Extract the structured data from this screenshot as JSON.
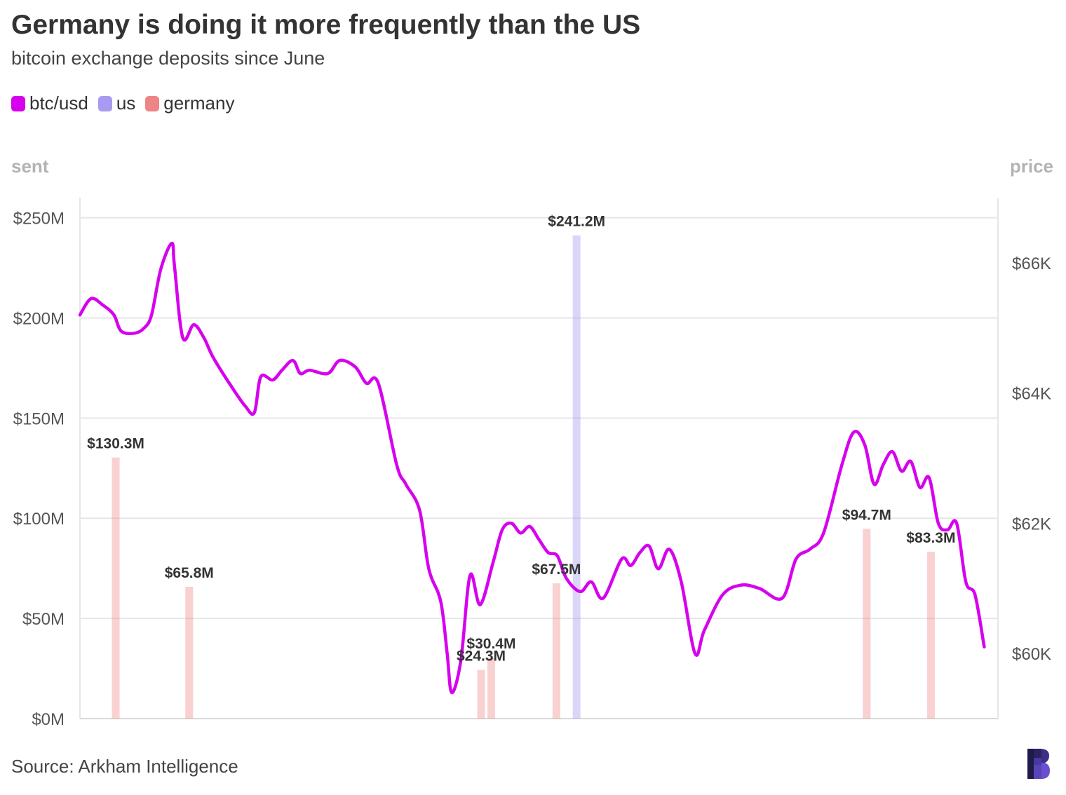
{
  "header": {
    "title": "Germany is doing it more frequently than the US",
    "subtitle": "bitcoin exchange deposits since June"
  },
  "legend": [
    {
      "label": "btc/usd",
      "color": "#d602ee"
    },
    {
      "label": "us",
      "color": "#a89af0"
    },
    {
      "label": "germany",
      "color": "#ee8585"
    }
  ],
  "axes": {
    "left_title": "sent",
    "right_title": "price"
  },
  "footer": {
    "source": "Source: Arkham Intelligence"
  },
  "logo_icon": "brand-b-logo",
  "chart_data": {
    "type": "bar",
    "subtype": "bar-line-combo",
    "left_axis": {
      "title": "sent",
      "range": [
        0,
        260
      ],
      "unit": "$M",
      "ticks": [
        "$0M",
        "$50M",
        "$100M",
        "$150M",
        "$200M",
        "$250M"
      ]
    },
    "right_axis": {
      "title": "price",
      "range": [
        59000,
        67000
      ],
      "ticks": [
        "$60K",
        "$62K",
        "$64K",
        "$66K"
      ]
    },
    "grid": true,
    "legend_position": "top-left",
    "bar_series": [
      {
        "name": "germany",
        "color": "#ee8585",
        "bars": [
          {
            "x": 0.039,
            "value": 130.3,
            "label": "$130.3M"
          },
          {
            "x": 0.119,
            "value": 65.8,
            "label": "$65.8M"
          },
          {
            "x": 0.437,
            "value": 24.3,
            "label": "$24.3M"
          },
          {
            "x": 0.448,
            "value": 30.4,
            "label": "$30.4M"
          },
          {
            "x": 0.519,
            "value": 67.5,
            "label": "$67.5M"
          },
          {
            "x": 0.857,
            "value": 94.7,
            "label": "$94.7M"
          },
          {
            "x": 0.927,
            "value": 83.3,
            "label": "$83.3M"
          }
        ]
      },
      {
        "name": "us",
        "color": "#a89af0",
        "bars": [
          {
            "x": 0.541,
            "value": 241.2,
            "label": "$241.2M"
          }
        ]
      }
    ],
    "line_series": {
      "name": "btc/usd",
      "color": "#d602ee",
      "points": [
        [
          0.0,
          65.2
        ],
        [
          0.012,
          65.45
        ],
        [
          0.025,
          65.35
        ],
        [
          0.037,
          65.2
        ],
        [
          0.045,
          64.95
        ],
        [
          0.06,
          64.92
        ],
        [
          0.07,
          65.0
        ],
        [
          0.078,
          65.2
        ],
        [
          0.088,
          65.9
        ],
        [
          0.1,
          66.3
        ],
        [
          0.103,
          65.95
        ],
        [
          0.112,
          64.85
        ],
        [
          0.124,
          65.05
        ],
        [
          0.135,
          64.85
        ],
        [
          0.145,
          64.55
        ],
        [
          0.165,
          64.1
        ],
        [
          0.18,
          63.8
        ],
        [
          0.19,
          63.7
        ],
        [
          0.197,
          64.25
        ],
        [
          0.21,
          64.2
        ],
        [
          0.22,
          64.35
        ],
        [
          0.232,
          64.5
        ],
        [
          0.24,
          64.3
        ],
        [
          0.25,
          64.35
        ],
        [
          0.27,
          64.3
        ],
        [
          0.283,
          64.5
        ],
        [
          0.3,
          64.4
        ],
        [
          0.312,
          64.15
        ],
        [
          0.325,
          64.15
        ],
        [
          0.345,
          62.9
        ],
        [
          0.355,
          62.6
        ],
        [
          0.37,
          62.2
        ],
        [
          0.38,
          61.3
        ],
        [
          0.393,
          60.8
        ],
        [
          0.4,
          60.0
        ],
        [
          0.405,
          59.4
        ],
        [
          0.415,
          59.9
        ],
        [
          0.425,
          61.2
        ],
        [
          0.436,
          60.75
        ],
        [
          0.45,
          61.4
        ],
        [
          0.46,
          61.9
        ],
        [
          0.47,
          62.0
        ],
        [
          0.48,
          61.85
        ],
        [
          0.49,
          61.95
        ],
        [
          0.5,
          61.75
        ],
        [
          0.51,
          61.55
        ],
        [
          0.52,
          61.5
        ],
        [
          0.53,
          61.15
        ],
        [
          0.545,
          60.95
        ],
        [
          0.557,
          61.1
        ],
        [
          0.57,
          60.85
        ],
        [
          0.59,
          61.45
        ],
        [
          0.6,
          61.35
        ],
        [
          0.61,
          61.55
        ],
        [
          0.62,
          61.65
        ],
        [
          0.63,
          61.3
        ],
        [
          0.642,
          61.6
        ],
        [
          0.655,
          61.1
        ],
        [
          0.67,
          60.0
        ],
        [
          0.68,
          60.35
        ],
        [
          0.7,
          60.9
        ],
        [
          0.72,
          61.05
        ],
        [
          0.74,
          61.0
        ],
        [
          0.765,
          60.85
        ],
        [
          0.78,
          61.45
        ],
        [
          0.795,
          61.6
        ],
        [
          0.81,
          61.85
        ],
        [
          0.83,
          62.9
        ],
        [
          0.843,
          63.4
        ],
        [
          0.855,
          63.2
        ],
        [
          0.865,
          62.6
        ],
        [
          0.875,
          62.9
        ],
        [
          0.885,
          63.1
        ],
        [
          0.895,
          62.8
        ],
        [
          0.905,
          62.95
        ],
        [
          0.915,
          62.55
        ],
        [
          0.925,
          62.7
        ],
        [
          0.935,
          62.0
        ],
        [
          0.945,
          61.9
        ],
        [
          0.955,
          62.0
        ],
        [
          0.965,
          61.1
        ],
        [
          0.975,
          60.9
        ],
        [
          0.985,
          60.1
        ]
      ]
    }
  }
}
